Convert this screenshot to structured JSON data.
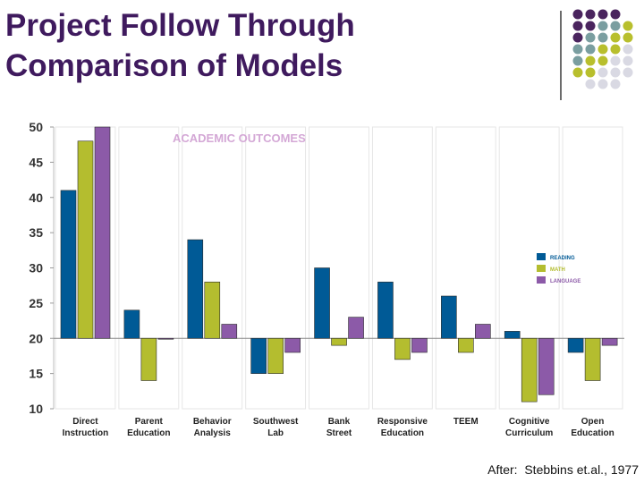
{
  "slide": {
    "title_line1": "Project Follow Through",
    "title_line2": "Comparison of Models",
    "credit": "After:  Stebbins et.al., 1977"
  },
  "colors": {
    "title": "#3f1a5e",
    "reading": "#005a96",
    "math": "#b4bd2f",
    "language": "#8c5aa8",
    "chart_title": "#d4a8d6",
    "dot_purple": "#4a245e",
    "dot_teal": "#7a9ea0",
    "dot_olive": "#b8bf2d",
    "dot_grey": "#d9d9e3"
  },
  "chart_data": {
    "type": "bar",
    "title": "ACADEMIC OUTCOMES",
    "baseline": 20,
    "ylim": [
      10,
      50
    ],
    "yticks": [
      10,
      15,
      20,
      25,
      30,
      35,
      40,
      45,
      50
    ],
    "categories": [
      [
        "Direct",
        "Instruction"
      ],
      [
        "Parent",
        "Education"
      ],
      [
        "Behavior",
        "Analysis"
      ],
      [
        "Southwest",
        "Lab"
      ],
      [
        "Bank",
        "Street"
      ],
      [
        "Responsive",
        "Education"
      ],
      [
        "TEEM"
      ],
      [
        "Cognitive",
        "Curriculum"
      ],
      [
        "Open",
        "Education"
      ]
    ],
    "series": [
      {
        "name": "READING",
        "values": [
          41,
          24,
          34,
          15,
          30,
          28,
          26,
          21,
          18
        ]
      },
      {
        "name": "MATH",
        "values": [
          48,
          14,
          28,
          15,
          19,
          17,
          18,
          11,
          14
        ]
      },
      {
        "name": "LANGUAGE",
        "values": [
          50,
          20,
          22,
          18,
          23,
          18,
          22,
          12,
          19
        ]
      }
    ],
    "legend_position": "right"
  }
}
